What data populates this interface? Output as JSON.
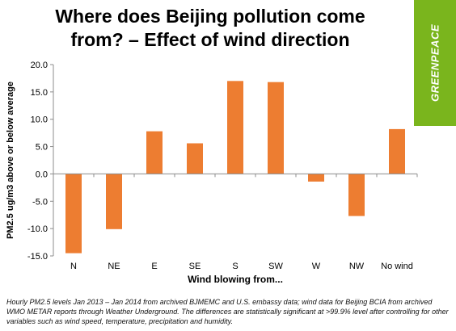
{
  "title_line1": "Where does Beijing pollution come",
  "title_line2": "from? – Effect of wind direction",
  "brand": {
    "logo_text": "GREENPEACE",
    "color": "#7ab51d"
  },
  "footnote": "Hourly PM2.5 levels Jan 2013 – Jan 2014 from archived BJMEMC and U.S. embassy data; wind data for Beijing BCIA from archived WMO METAR reports through Weather Underground. The differences are statistically significant at >99.9% level after controlling for other variables such as wind speed, temperature, precipitation and humidity.",
  "chart_data": {
    "type": "bar",
    "categories": [
      "N",
      "NE",
      "E",
      "SE",
      "S",
      "SW",
      "W",
      "NW",
      "No wind"
    ],
    "values": [
      -14.5,
      -10.1,
      7.8,
      5.6,
      17.0,
      16.8,
      -1.4,
      -7.7,
      8.2
    ],
    "xlabel": "Wind blowing from...",
    "ylabel": "PM2.5 ug/m3 above or below average",
    "ylim": [
      -15,
      20
    ],
    "yticks": [
      20,
      15,
      10,
      5,
      0,
      -5,
      -10,
      -15
    ],
    "ytick_labels": [
      "20.0",
      "15.0",
      "10.0",
      "5.0",
      "0.0",
      "-5.0",
      "-10.0",
      "-15.0"
    ],
    "bar_color": "#ed7d31",
    "grid": false,
    "legend": "none"
  }
}
